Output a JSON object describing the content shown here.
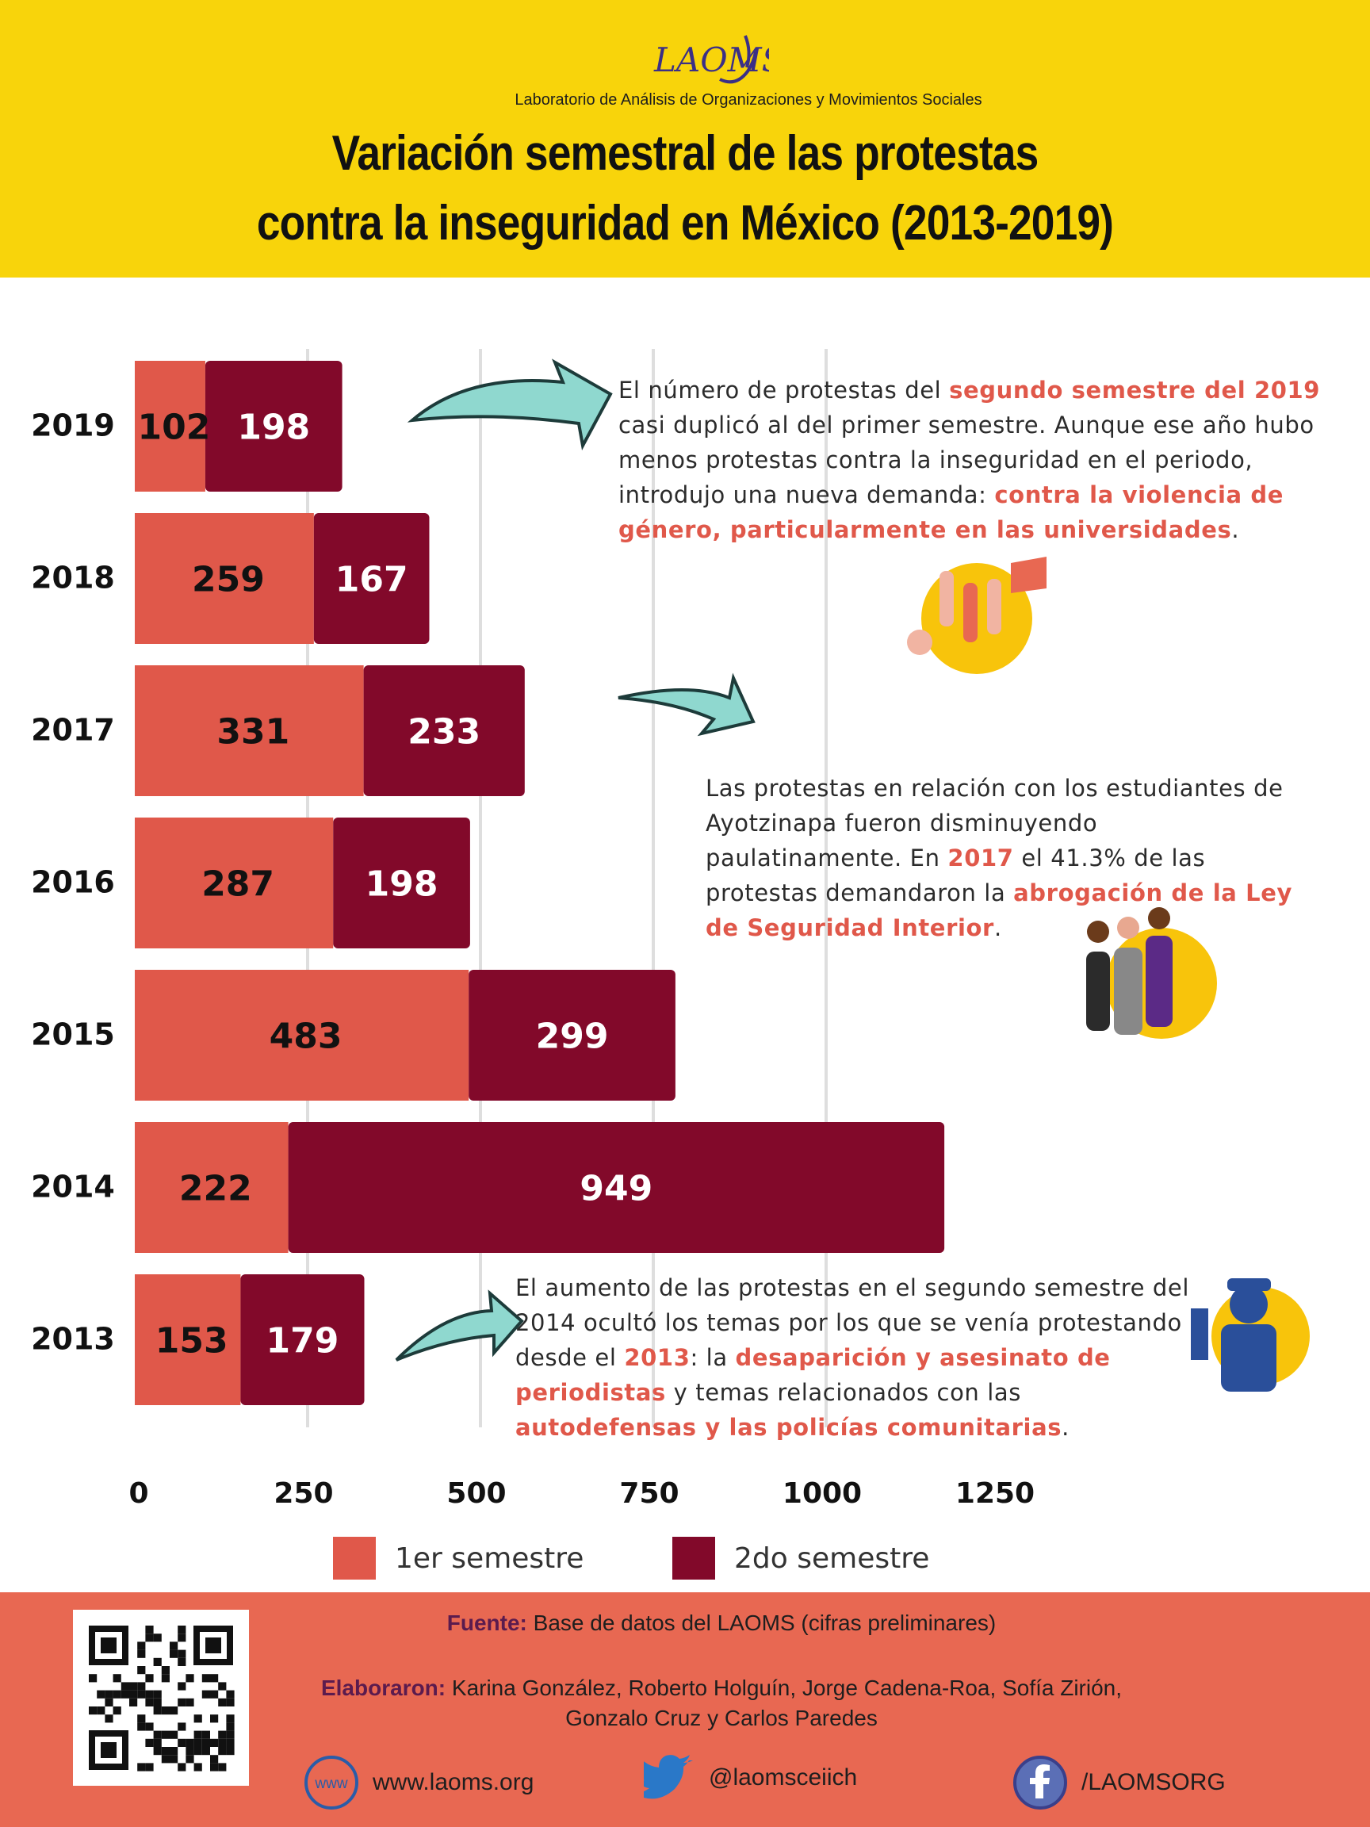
{
  "header": {
    "org_name": "Laboratorio de Análisis de Organizaciones y Movimientos Sociales",
    "title_line1": "Variación semestral de las protestas",
    "title_line2": "contra la inseguridad en México (2013-2019)",
    "logo_text": "LAOMS"
  },
  "colors": {
    "first_semester": "#e0584a",
    "second_semester": "#82092a",
    "header_bg": "#f8d40b",
    "footer_bg": "#e86852",
    "highlight": "#e0584a",
    "arrow": "#8fd8cf"
  },
  "chart_data": {
    "type": "bar",
    "orientation": "horizontal",
    "stacked": true,
    "categories": [
      "2019",
      "2018",
      "2017",
      "2016",
      "2015",
      "2014",
      "2013"
    ],
    "series": [
      {
        "name": "1er semestre",
        "values": [
          102,
          259,
          331,
          287,
          483,
          222,
          153
        ]
      },
      {
        "name": "2do semestre",
        "values": [
          198,
          167,
          233,
          198,
          299,
          949,
          179
        ]
      }
    ],
    "xticks": [
      "0",
      "250",
      "500",
      "750",
      "1000",
      "1250"
    ],
    "xlim": [
      0,
      1250
    ],
    "grid": "vertical",
    "legend": "bottom"
  },
  "callouts": {
    "c2019": [
      {
        "t": "El número de protestas del "
      },
      {
        "t": "segundo semestre del 2019",
        "hl": true
      },
      {
        "t": " casi duplicó al del primer semestre. Aunque ese año hubo menos protestas contra la inseguridad en el periodo, introdujo una nueva demanda: "
      },
      {
        "t": "contra la violencia de género, particularmente en las universidades",
        "hl": true
      },
      {
        "t": "."
      }
    ],
    "c2017": [
      {
        "t": "Las protestas en relación con los estudiantes de Ayotzinapa fueron disminuyendo paulatinamente. En "
      },
      {
        "t": "2017",
        "hl": true
      },
      {
        "t": " el 41.3% de las protestas demandaron la "
      },
      {
        "t": "abrogación de la Ley de Seguridad Interior",
        "hl": true
      },
      {
        "t": "."
      }
    ],
    "c2013": [
      {
        "t": "El aumento de las protestas en el segundo semestre del 2014 ocultó los temas por los que se venía protestando desde el "
      },
      {
        "t": "2013",
        "hl": true
      },
      {
        "t": ": la "
      },
      {
        "t": "desaparición y asesinato de periodistas",
        "hl": true
      },
      {
        "t": " y temas relacionados con las "
      },
      {
        "t": "autodefensas y las policías comunitarias",
        "hl": true
      },
      {
        "t": "."
      }
    ]
  },
  "legend": {
    "first": "1er semestre",
    "second": "2do semestre"
  },
  "footer": {
    "source_label": "Fuente:",
    "source_text": " Base de datos del LAOMS (cifras preliminares)",
    "authors_label": "Elaboraron:",
    "authors_line1": " Karina González, Roberto Holguín, Jorge Cadena-Roa, Sofía Zirión,",
    "authors_line2": "Gonzalo Cruz y Carlos Paredes",
    "website": "www.laoms.org",
    "website_icon_text": "www",
    "twitter": "@laomsceiich",
    "facebook": "/LAOMSORG"
  }
}
